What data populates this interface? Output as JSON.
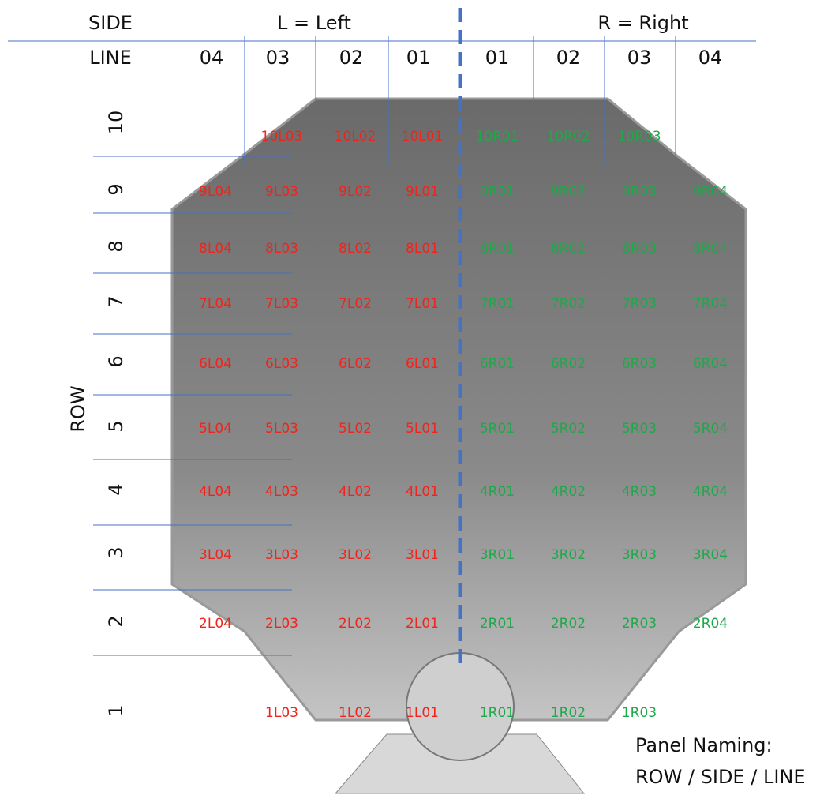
{
  "header": {
    "side": "SIDE",
    "left": "L = Left",
    "right": "R = Right",
    "line": "LINE",
    "row": "ROW",
    "lines": [
      "04",
      "03",
      "02",
      "01",
      "01",
      "02",
      "03",
      "04"
    ]
  },
  "rows": [
    {
      "label": "10",
      "panels": [
        "10L03",
        "10L02",
        "10L01",
        "10R01",
        "10R02",
        "10R03"
      ]
    },
    {
      "label": "9",
      "panels": [
        "9L04",
        "9L03",
        "9L02",
        "9L01",
        "9R01",
        "9R02",
        "9R03",
        "9R04"
      ]
    },
    {
      "label": "8",
      "panels": [
        "8L04",
        "8L03",
        "8L02",
        "8L01",
        "8R01",
        "8R02",
        "8R03",
        "8R04"
      ]
    },
    {
      "label": "7",
      "panels": [
        "7L04",
        "7L03",
        "7L02",
        "7L01",
        "7R01",
        "7R02",
        "7R03",
        "7R04"
      ]
    },
    {
      "label": "6",
      "panels": [
        "6L04",
        "6L03",
        "6L02",
        "6L01",
        "6R01",
        "6R02",
        "6R03",
        "6R04"
      ]
    },
    {
      "label": "5",
      "panels": [
        "5L04",
        "5L03",
        "5L02",
        "5L01",
        "5R01",
        "5R02",
        "5R03",
        "5R04"
      ]
    },
    {
      "label": "4",
      "panels": [
        "4L04",
        "4L03",
        "4L02",
        "4L01",
        "4R01",
        "4R02",
        "4R03",
        "4R04"
      ]
    },
    {
      "label": "3",
      "panels": [
        "3L04",
        "3L03",
        "3L02",
        "3L01",
        "3R01",
        "3R02",
        "3R03",
        "3R04"
      ]
    },
    {
      "label": "2",
      "panels": [
        "2L04",
        "2L03",
        "2L02",
        "2L01",
        "2R01",
        "2R02",
        "2R03",
        "2R04"
      ]
    },
    {
      "label": "1",
      "panels": [
        "1L03",
        "1L02",
        "1L01",
        "1R01",
        "1R02",
        "1R03"
      ]
    }
  ],
  "note": [
    "Panel Naming:",
    "ROW / SIDE / LINE"
  ]
}
